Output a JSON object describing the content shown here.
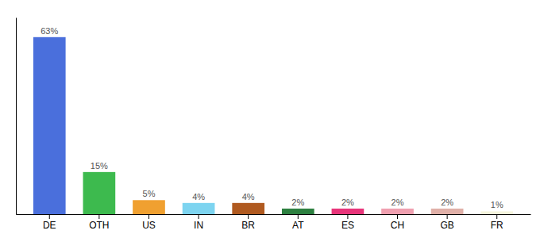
{
  "chart_data": {
    "type": "bar",
    "categories": [
      "DE",
      "OTH",
      "US",
      "IN",
      "BR",
      "AT",
      "ES",
      "CH",
      "GB",
      "FR"
    ],
    "values": [
      63,
      15,
      5,
      4,
      4,
      2,
      2,
      2,
      2,
      1
    ],
    "value_labels": [
      "63%",
      "15%",
      "5%",
      "4%",
      "4%",
      "2%",
      "2%",
      "2%",
      "2%",
      "1%"
    ],
    "colors": [
      "#4a6fdc",
      "#3dba4e",
      "#f0a030",
      "#7dd4f0",
      "#b05a20",
      "#2d8040",
      "#e8357a",
      "#f0a0b0",
      "#e0b0a8",
      "#f5f5dc"
    ],
    "ylim": [
      0,
      70
    ],
    "data_labels": true,
    "tick_labels": "x"
  }
}
